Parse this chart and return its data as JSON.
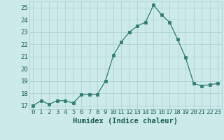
{
  "x": [
    0,
    1,
    2,
    3,
    4,
    5,
    6,
    7,
    8,
    9,
    10,
    11,
    12,
    13,
    14,
    15,
    16,
    17,
    18,
    19,
    20,
    21,
    22,
    23
  ],
  "y": [
    17.0,
    17.4,
    17.1,
    17.4,
    17.4,
    17.2,
    17.9,
    17.9,
    17.9,
    19.0,
    21.1,
    22.2,
    23.0,
    23.5,
    23.8,
    25.2,
    24.4,
    23.8,
    22.4,
    20.9,
    18.8,
    18.6,
    18.7,
    18.8
  ],
  "xlabel": "Humidex (Indice chaleur)",
  "ylim": [
    16.7,
    25.5
  ],
  "xlim": [
    -0.5,
    23.5
  ],
  "yticks": [
    17,
    18,
    19,
    20,
    21,
    22,
    23,
    24,
    25
  ],
  "xticks": [
    0,
    1,
    2,
    3,
    4,
    5,
    6,
    7,
    8,
    9,
    10,
    11,
    12,
    13,
    14,
    15,
    16,
    17,
    18,
    19,
    20,
    21,
    22,
    23
  ],
  "line_color": "#2e7d6e",
  "marker_color": "#2e7d6e",
  "bg_color": "#cdeaea",
  "grid_color": "#aacece",
  "label_color": "#1a5c52",
  "tick_color": "#1a5c52",
  "tick_fontsize": 6.5,
  "xlabel_fontsize": 7.5
}
